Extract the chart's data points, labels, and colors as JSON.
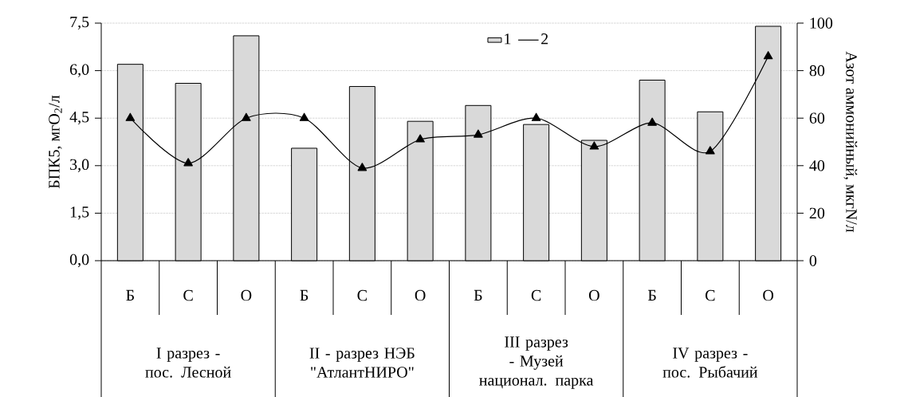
{
  "chart_data": {
    "type": "bar",
    "categories": [
      "Б",
      "С",
      "О",
      "Б",
      "С",
      "О",
      "Б",
      "С",
      "О",
      "Б",
      "С",
      "О"
    ],
    "series": [
      {
        "name": "1",
        "color": "#d9d9d9",
        "values": [
          6.2,
          5.6,
          7.1,
          3.55,
          5.5,
          4.4,
          4.9,
          4.3,
          3.8,
          5.7,
          4.7,
          7.4
        ]
      },
      {
        "name": "2",
        "type": "line",
        "axis": "y2",
        "color": "#000000",
        "marker": "triangle",
        "line_style": "solid",
        "values": [
          60,
          41,
          60,
          60,
          39,
          51,
          53,
          60,
          48,
          58,
          46,
          86
        ]
      }
    ],
    "ylabel": "БПК5, мгО$_{2}$/л",
    "y2label": "Азот аммонийный, мкгN/л",
    "ylim": [
      0,
      7.5
    ],
    "yticks": [
      {
        "value": 0,
        "label": "0,0"
      },
      {
        "value": 1.5,
        "label": "1,5"
      },
      {
        "value": 3,
        "label": "3,0"
      },
      {
        "value": 4.5,
        "label": "4,5"
      },
      {
        "value": 6,
        "label": "6,0"
      },
      {
        "value": 7.5,
        "label": "7,5"
      }
    ],
    "y2lim": [
      0,
      100
    ],
    "y2ticks": [
      0,
      20,
      40,
      60,
      80,
      100
    ],
    "grid": "y",
    "legend": "top",
    "annotations": [
      "I разрез - пос. Лесной",
      "II  - разрез НЭБ \"АтлантНИРО\"",
      "III разрез - Музей национал. парка",
      "IV разрез - пос. Рыбачий"
    ]
  }
}
